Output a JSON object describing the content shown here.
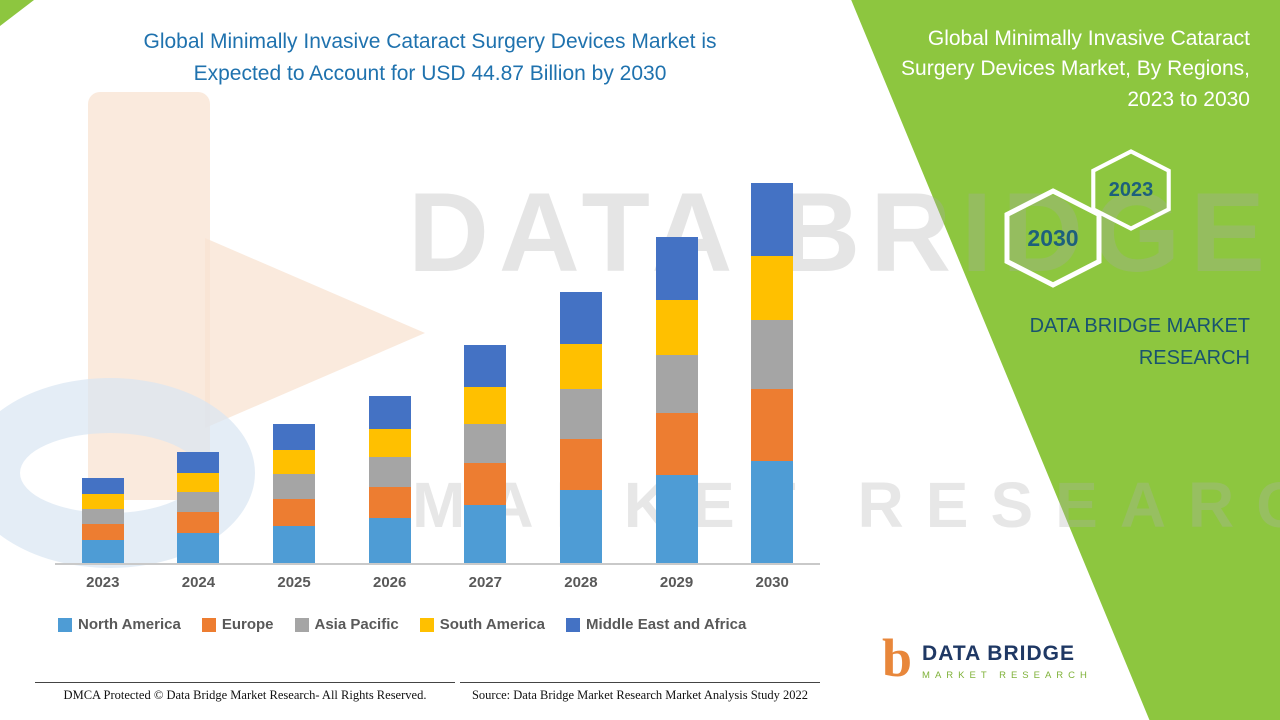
{
  "header": {
    "main_title_line1": "Global Minimally Invasive Cataract Surgery Devices Market is",
    "main_title_line2": "Expected to Account for USD 44.87 Billion by 2030"
  },
  "right_panel": {
    "title": "Global Minimally Invasive Cataract Surgery Devices Market, By Regions, 2023 to 2030",
    "hexagon_back_year": "2030",
    "hexagon_front_year": "2023",
    "brand_text": "DATA BRIDGE MARKET RESEARCH"
  },
  "watermark": {
    "line1": "DATA BRIDGE",
    "line2": "MARKET RESEARCH"
  },
  "logo": {
    "mark": "b",
    "name": "DATA BRIDGE",
    "subtitle": "MARKET RESEARCH"
  },
  "footer": {
    "left": "DMCA Protected © Data Bridge Market Research- All Rights Reserved.",
    "right": "Source: Data Bridge Market Research Market Analysis Study 2022"
  },
  "colors": {
    "panel_green": "#8DC63F",
    "title_blue": "#1F72AE",
    "hexagon_year_teal": "#1D607C",
    "brand_teal": "#19536F",
    "axis_text_gray": "#595959"
  },
  "chart_data": {
    "type": "bar",
    "stacked": true,
    "title": "Global Minimally Invasive Cataract Surgery Devices Market is Expected to Account for USD 44.87 Billion by 2030",
    "unit": "USD Billion",
    "xlabel": "",
    "ylabel": "",
    "ylim": [
      0,
      45
    ],
    "grid": false,
    "legend_position": "bottom",
    "categories": [
      "2023",
      "2024",
      "2025",
      "2026",
      "2027",
      "2028",
      "2029",
      "2030"
    ],
    "series": [
      {
        "name": "North America",
        "color": "#4E9CD5",
        "values": [
          2.7,
          3.5,
          4.4,
          5.3,
          6.9,
          8.6,
          10.4,
          12.1
        ]
      },
      {
        "name": "Europe",
        "color": "#ED7D31",
        "values": [
          1.9,
          2.5,
          3.1,
          3.7,
          4.9,
          6.1,
          7.3,
          8.5
        ]
      },
      {
        "name": "Asia Pacific",
        "color": "#A5A5A5",
        "values": [
          1.8,
          2.4,
          3.0,
          3.5,
          4.6,
          5.8,
          6.9,
          8.1
        ]
      },
      {
        "name": "South America",
        "color": "#FFC000",
        "values": [
          1.7,
          2.2,
          2.8,
          3.3,
          4.4,
          5.4,
          6.5,
          7.6
        ]
      },
      {
        "name": "Middle East and Africa",
        "color": "#4472C4",
        "values": [
          1.9,
          2.5,
          3.1,
          3.9,
          4.9,
          6.1,
          7.4,
          8.57
        ]
      }
    ],
    "totals_by_year": [
      10.0,
      13.1,
      16.4,
      19.7,
      25.7,
      32.0,
      38.5,
      44.87
    ]
  }
}
